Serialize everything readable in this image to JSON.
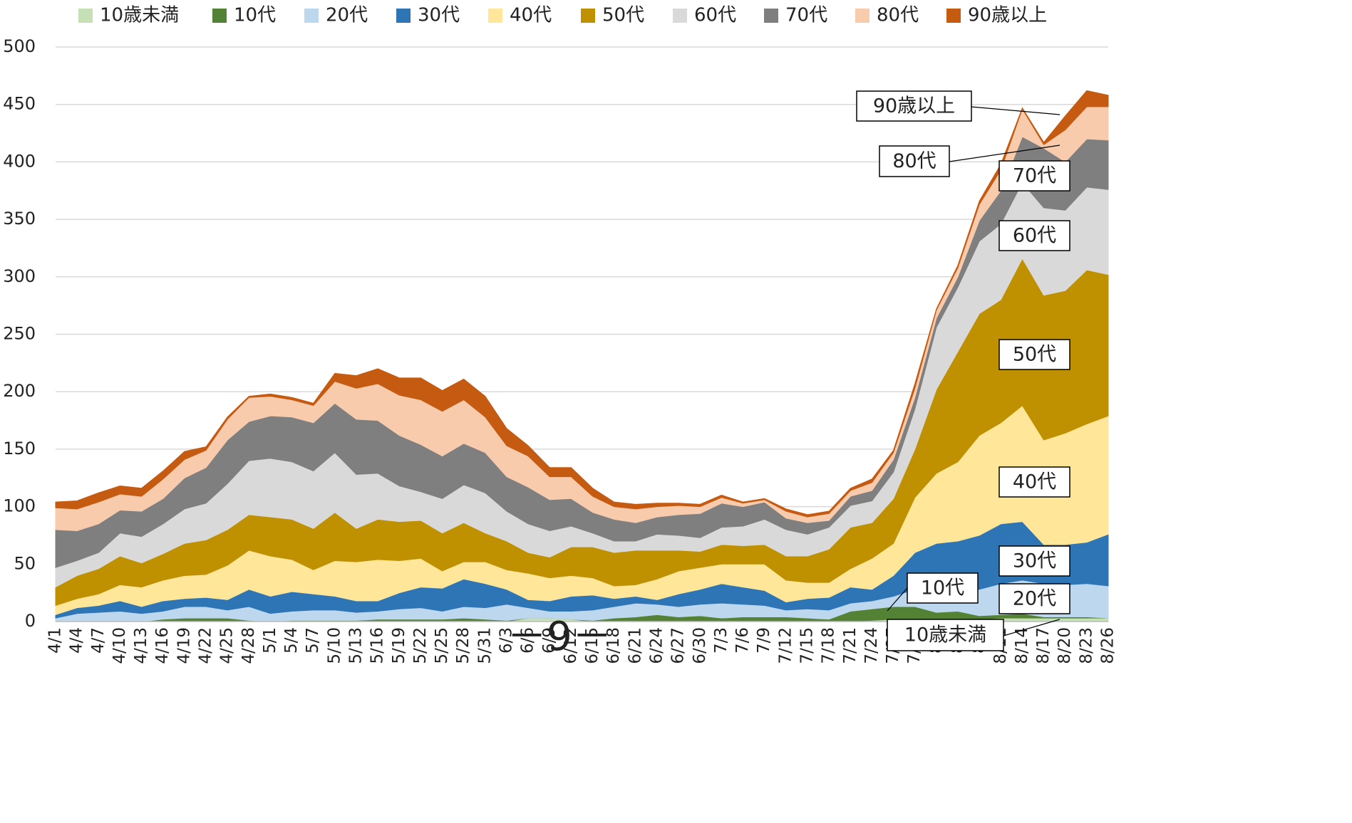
{
  "chart_data": {
    "type": "stacked-area",
    "categories": [
      "4/1",
      "4/4",
      "4/7",
      "4/10",
      "4/13",
      "4/16",
      "4/19",
      "4/22",
      "4/25",
      "4/28",
      "5/1",
      "5/4",
      "5/7",
      "5/10",
      "5/13",
      "5/16",
      "5/19",
      "5/22",
      "5/25",
      "5/28",
      "5/31",
      "6/3",
      "6/6",
      "6/9",
      "6/12",
      "6/15",
      "6/18",
      "6/21",
      "6/24",
      "6/27",
      "6/30",
      "7/3",
      "7/6",
      "7/9",
      "7/12",
      "7/15",
      "7/18",
      "7/21",
      "7/24",
      "7/27",
      "7/30",
      "8/2",
      "8/5",
      "8/8",
      "8/11",
      "8/14",
      "8/17",
      "8/20",
      "8/23",
      "8/26"
    ],
    "series": [
      {
        "name": "10歳未満",
        "color": "#c5e0b4",
        "values": [
          0,
          0,
          0,
          0,
          0,
          0,
          0,
          0,
          0,
          0,
          0,
          0,
          0,
          0,
          0,
          0,
          0,
          0,
          0,
          0,
          0,
          0,
          3,
          3,
          2,
          0,
          0,
          0,
          0,
          0,
          0,
          0,
          0,
          0,
          0,
          0,
          0,
          0,
          1,
          2,
          2,
          2,
          2,
          2,
          3,
          3,
          3,
          3,
          3,
          3
        ]
      },
      {
        "name": "10代",
        "color": "#548235",
        "values": [
          0,
          0,
          0,
          0,
          0,
          2,
          3,
          3,
          3,
          1,
          0,
          1,
          1,
          1,
          1,
          2,
          2,
          2,
          2,
          3,
          2,
          1,
          0,
          0,
          0,
          1,
          3,
          4,
          6,
          4,
          5,
          3,
          4,
          4,
          4,
          3,
          2,
          9,
          10,
          11,
          11,
          6,
          7,
          3,
          3,
          4,
          1,
          1,
          1,
          0
        ]
      },
      {
        "name": "20代",
        "color": "#bdd7ee",
        "values": [
          3,
          7,
          8,
          9,
          7,
          7,
          10,
          10,
          7,
          12,
          7,
          8,
          9,
          9,
          7,
          7,
          9,
          10,
          7,
          10,
          10,
          14,
          9,
          6,
          7,
          9,
          10,
          12,
          9,
          9,
          10,
          13,
          11,
          10,
          6,
          8,
          8,
          7,
          7,
          9,
          15,
          17,
          18,
          23,
          27,
          29,
          29,
          28,
          29,
          28
        ]
      },
      {
        "name": "30代",
        "color": "#2e75b6",
        "values": [
          3,
          5,
          6,
          9,
          6,
          9,
          7,
          8,
          9,
          15,
          15,
          17,
          14,
          12,
          10,
          9,
          14,
          18,
          20,
          24,
          21,
          13,
          7,
          9,
          13,
          13,
          7,
          6,
          4,
          11,
          13,
          17,
          15,
          13,
          7,
          9,
          11,
          14,
          10,
          18,
          32,
          43,
          43,
          47,
          52,
          51,
          34,
          35,
          36,
          45
        ]
      },
      {
        "name": "40代",
        "color": "#ffe699",
        "values": [
          8,
          8,
          10,
          14,
          17,
          18,
          20,
          20,
          30,
          34,
          35,
          28,
          21,
          31,
          34,
          36,
          28,
          25,
          15,
          15,
          19,
          17,
          23,
          20,
          18,
          15,
          11,
          10,
          18,
          20,
          19,
          17,
          20,
          23,
          19,
          14,
          13,
          16,
          27,
          28,
          48,
          61,
          69,
          87,
          88,
          101,
          91,
          97,
          103,
          103
        ]
      },
      {
        "name": "50代",
        "color": "#bf9000",
        "values": [
          16,
          20,
          22,
          25,
          21,
          23,
          28,
          30,
          31,
          31,
          34,
          35,
          36,
          42,
          29,
          35,
          34,
          33,
          33,
          34,
          25,
          25,
          18,
          18,
          25,
          27,
          29,
          30,
          25,
          18,
          14,
          17,
          16,
          17,
          21,
          23,
          29,
          36,
          31,
          39,
          42,
          73,
          96,
          106,
          107,
          128,
          126,
          124,
          134,
          123
        ]
      },
      {
        "name": "60代",
        "color": "#d9d9d9",
        "values": [
          17,
          13,
          14,
          20,
          23,
          26,
          30,
          32,
          40,
          47,
          51,
          50,
          50,
          52,
          47,
          40,
          31,
          25,
          30,
          33,
          35,
          26,
          25,
          23,
          18,
          12,
          10,
          8,
          14,
          13,
          12,
          15,
          17,
          22,
          23,
          19,
          19,
          19,
          19,
          23,
          35,
          54,
          56,
          63,
          66,
          66,
          76,
          70,
          72,
          74
        ]
      },
      {
        "name": "70代",
        "color": "#7f7f7f",
        "values": [
          33,
          26,
          25,
          20,
          22,
          22,
          27,
          31,
          38,
          34,
          37,
          39,
          42,
          43,
          48,
          46,
          44,
          41,
          37,
          36,
          35,
          30,
          32,
          27,
          24,
          18,
          19,
          16,
          15,
          18,
          21,
          21,
          17,
          15,
          10,
          10,
          6,
          8,
          9,
          11,
          10,
          8,
          9,
          18,
          29,
          40,
          52,
          42,
          42,
          43
        ]
      },
      {
        "name": "80代",
        "color": "#f8cbad",
        "values": [
          19,
          19,
          19,
          14,
          13,
          17,
          16,
          15,
          18,
          21,
          17,
          15,
          15,
          19,
          27,
          32,
          35,
          39,
          39,
          38,
          31,
          27,
          27,
          20,
          19,
          14,
          11,
          12,
          9,
          8,
          6,
          5,
          3,
          2,
          6,
          5,
          6,
          5,
          7,
          6,
          8,
          7,
          8,
          14,
          18,
          24,
          3,
          28,
          28,
          29
        ]
      },
      {
        "name": "90歳以上",
        "color": "#c55a11",
        "values": [
          5,
          7,
          8,
          7,
          7,
          7,
          7,
          3,
          2,
          1,
          2,
          2,
          2,
          7,
          11,
          13,
          15,
          19,
          18,
          18,
          18,
          15,
          9,
          8,
          8,
          7,
          4,
          4,
          3,
          2,
          2,
          2,
          1,
          1,
          2,
          2,
          2,
          2,
          3,
          2,
          4,
          1,
          2,
          3,
          5,
          1,
          2,
          12,
          14,
          10
        ]
      }
    ],
    "ylim": [
      0,
      500
    ],
    "yticks": [
      0,
      50,
      100,
      150,
      200,
      250,
      300,
      350,
      400,
      450,
      500
    ],
    "grid": true,
    "annotations": [
      "90歳以上",
      "80代",
      "70代",
      "60代",
      "50代",
      "40代",
      "30代",
      "20代",
      "10代",
      "10歳未満"
    ],
    "page_label": "－9－"
  }
}
